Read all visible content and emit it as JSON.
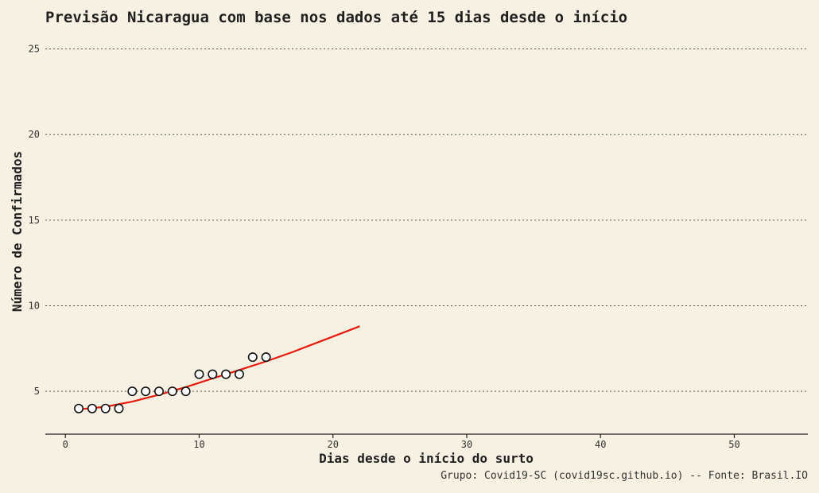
{
  "chart_data": {
    "type": "scatter",
    "title": "Previsão Nicaragua com base nos dados até 15 dias desde o início",
    "xlabel": "Dias desde o início do surto",
    "ylabel": "Número de Confirmados",
    "caption": "Grupo: Covid19-SC (covid19sc.github.io) -- Fonte: Brasil.IO",
    "xlim": [
      -1.5,
      55.5
    ],
    "ylim": [
      2.5,
      26
    ],
    "xticks": [
      0,
      10,
      20,
      30,
      40,
      50
    ],
    "yticks": [
      5,
      10,
      15,
      20,
      25
    ],
    "grid": "horizontal-dotted",
    "series": [
      {
        "type": "scatter",
        "x": [
          1,
          2,
          3,
          4,
          5,
          6,
          7,
          8,
          9,
          10,
          11,
          12,
          13,
          14,
          15
        ],
        "y": [
          4,
          4,
          4,
          4,
          5,
          5,
          5,
          5,
          5,
          6,
          6,
          6,
          6,
          7,
          7
        ]
      },
      {
        "type": "line",
        "color": "#e8190e",
        "x": [
          1,
          3,
          5,
          7,
          9,
          11,
          13,
          15,
          17,
          19,
          21,
          22
        ],
        "y": [
          3.95,
          4.1,
          4.4,
          4.8,
          5.25,
          5.75,
          6.25,
          6.75,
          7.3,
          7.9,
          8.5,
          8.8
        ]
      }
    ]
  }
}
